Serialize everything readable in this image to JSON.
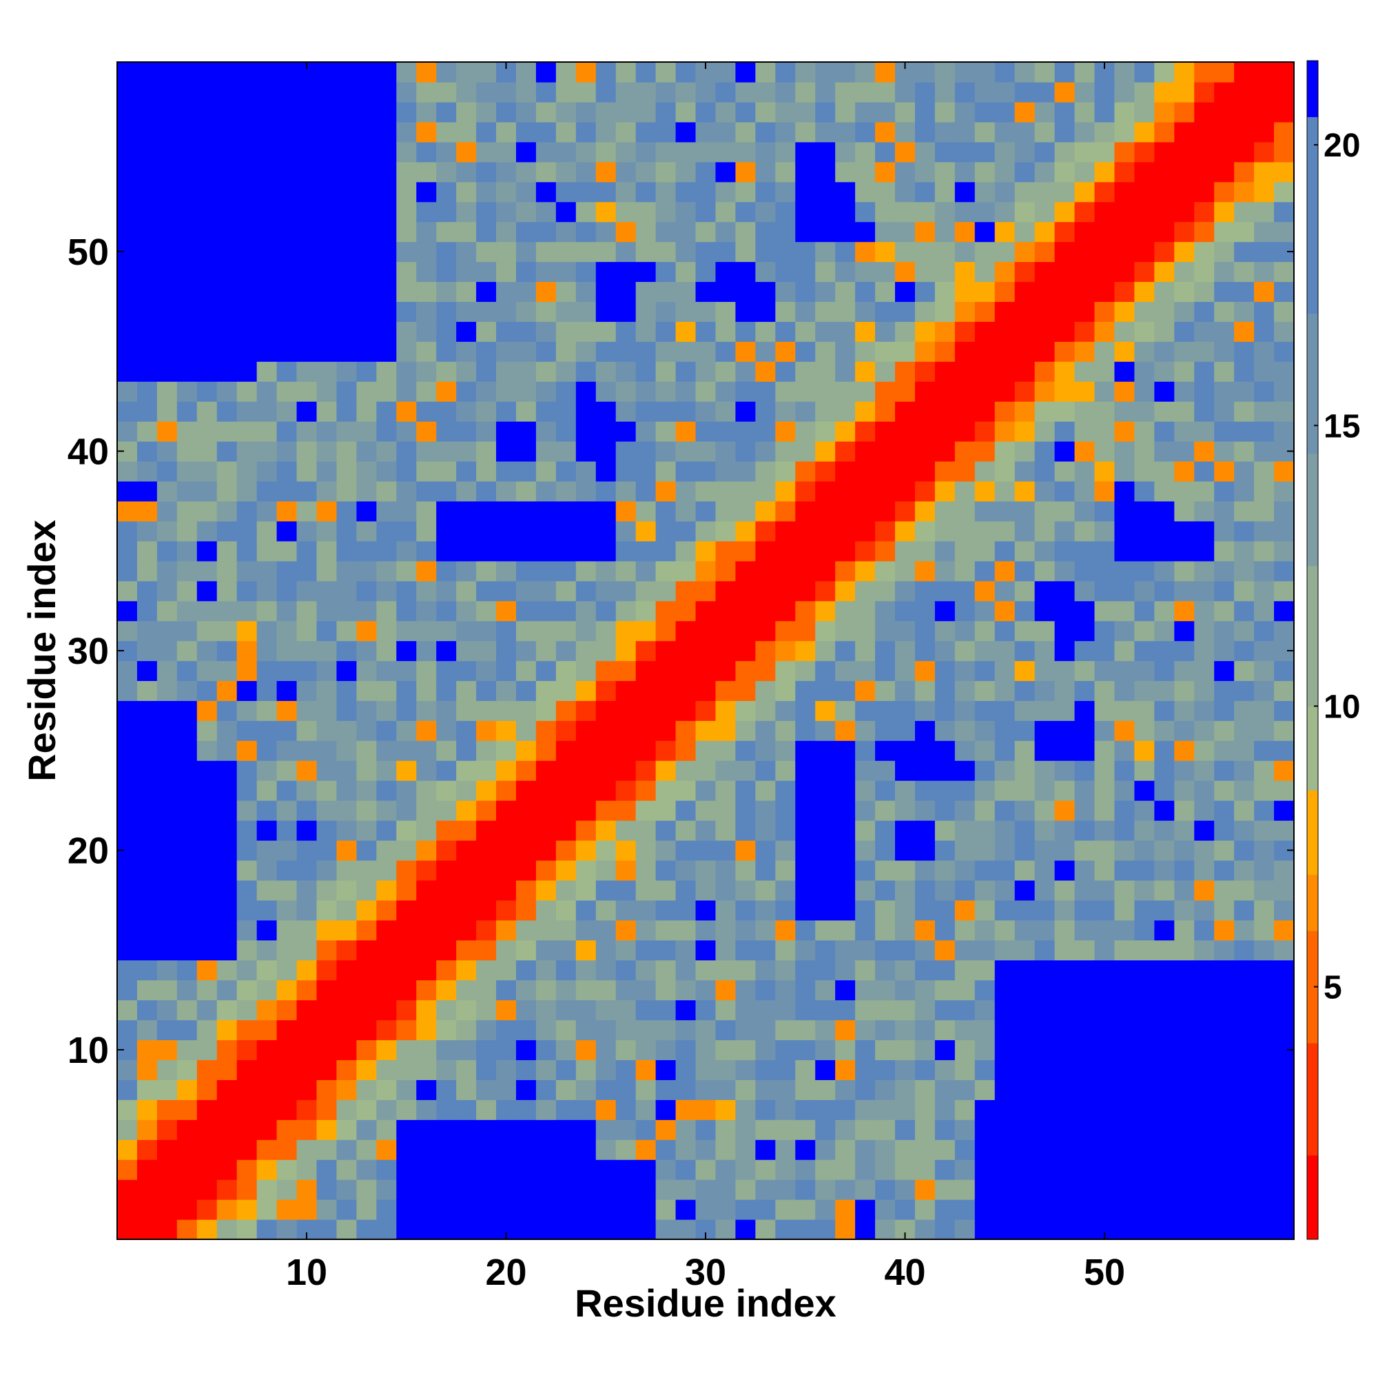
{
  "chart_data": {
    "type": "heatmap",
    "title": "",
    "xlabel": "Residue index",
    "ylabel": "Residue index",
    "n": 59,
    "xlim": [
      0.5,
      59.5
    ],
    "ylim": [
      0.5,
      59.5
    ],
    "x_ticks": [
      10,
      20,
      30,
      40,
      50
    ],
    "y_ticks": [
      10,
      20,
      30,
      40,
      50
    ],
    "x_tick_labels": [
      "10",
      "20",
      "30",
      "40",
      "50"
    ],
    "y_tick_labels": [
      "10",
      "20",
      "30",
      "40",
      "50"
    ],
    "colorbar": {
      "range": [
        0.5,
        21.5
      ],
      "ticks": [
        5,
        10,
        15,
        20
      ],
      "tick_labels": [
        "5",
        "10",
        "15",
        "20"
      ],
      "bins": [
        {
          "max": 2,
          "color": "#ff0000"
        },
        {
          "max": 4,
          "color": "#ff3300"
        },
        {
          "max": 6,
          "color": "#ff6600"
        },
        {
          "max": 7,
          "color": "#ff8c00"
        },
        {
          "max": 8.5,
          "color": "#ffaa00"
        },
        {
          "max": 10,
          "color": "#a0b98c"
        },
        {
          "max": 12.5,
          "color": "#93ae92"
        },
        {
          "max": 14.5,
          "color": "#7f9ea4"
        },
        {
          "max": 17,
          "color": "#6f93af"
        },
        {
          "max": 20.5,
          "color": "#5b86bd"
        },
        {
          "max": 99,
          "color": "#0000ff"
        }
      ]
    },
    "note_values": "symmetric residue distance map; value[i][j] in colorbar units",
    "blue_regions": [
      [
        1,
        14,
        45,
        59
      ],
      [
        1,
        4,
        17,
        27
      ],
      [
        15,
        24,
        1,
        6
      ],
      [
        44,
        53,
        1,
        7
      ],
      [
        18,
        23,
        36,
        37
      ],
      [
        24,
        25,
        40,
        42
      ],
      [
        35,
        37,
        17,
        25
      ],
      [
        35,
        36,
        51,
        55
      ],
      [
        51,
        53,
        35,
        37
      ],
      [
        40,
        41,
        20,
        21
      ],
      [
        47,
        48,
        25,
        26
      ],
      [
        32,
        33,
        47,
        48
      ],
      [
        25,
        26,
        47,
        49
      ],
      [
        48,
        49,
        31,
        32
      ],
      [
        1,
        2,
        38,
        38
      ],
      [
        1,
        1,
        32,
        32
      ],
      [
        59,
        59,
        32,
        32
      ]
    ]
  }
}
